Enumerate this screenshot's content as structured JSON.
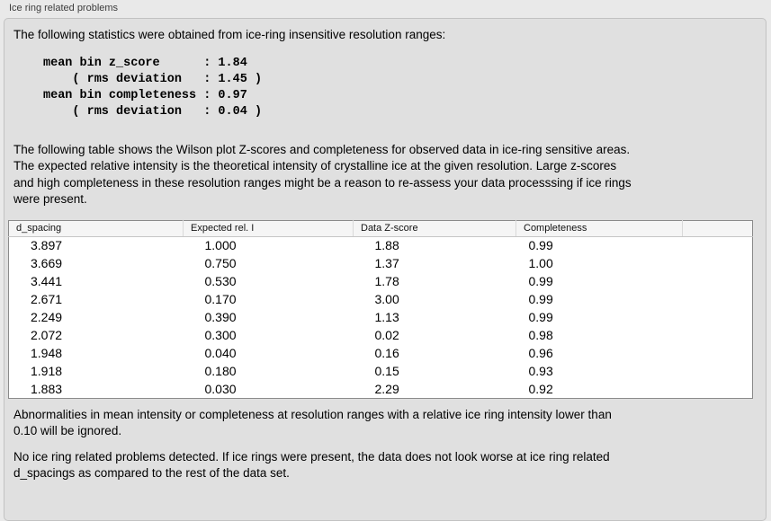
{
  "panel": {
    "title": "Ice ring related problems"
  },
  "intro": {
    "text": "The following statistics were obtained from ice-ring insensitive resolution ranges:"
  },
  "stats_block": {
    "lines": [
      "mean bin z_score      : 1.84",
      "    ( rms deviation   : 1.45 )",
      "mean bin completeness : 0.97",
      "    ( rms deviation   : 0.04 )"
    ]
  },
  "description": {
    "lines": [
      "The following table shows the Wilson plot Z-scores and completeness for observed data in ice-ring sensitive areas.",
      "The expected relative intensity is the theoretical intensity of crystalline ice at the given resolution. Large z-scores",
      "and high completeness in these resolution ranges might be a reason to re-assess your data processsing if ice rings",
      "were present."
    ]
  },
  "table": {
    "columns": [
      "d_spacing",
      "Expected rel. I",
      "Data Z-score",
      "Completeness",
      ""
    ],
    "rows": [
      [
        "3.897",
        "1.000",
        "1.88",
        "0.99"
      ],
      [
        "3.669",
        "0.750",
        "1.37",
        "1.00"
      ],
      [
        "3.441",
        "0.530",
        "1.78",
        "0.99"
      ],
      [
        "2.671",
        "0.170",
        "3.00",
        "0.99"
      ],
      [
        "2.249",
        "0.390",
        "1.13",
        "0.99"
      ],
      [
        "2.072",
        "0.300",
        "0.02",
        "0.98"
      ],
      [
        "1.948",
        "0.040",
        "0.16",
        "0.96"
      ],
      [
        "1.918",
        "0.180",
        "0.15",
        "0.93"
      ],
      [
        "1.883",
        "0.030",
        "2.29",
        "0.92"
      ]
    ]
  },
  "footnote": {
    "lines": [
      "Abnormalities in mean intensity or completeness at resolution ranges with a relative ice ring intensity lower than",
      "0.10 will be ignored."
    ]
  },
  "conclusion": {
    "lines": [
      "No ice ring related problems detected. If ice rings were present, the data does not look worse at ice ring related",
      "d_spacings as compared to the rest of the data set."
    ]
  },
  "colors": {
    "window_background": "#e9e9e9",
    "panel_background": "#e0e0e0",
    "table_background": "#ffffff",
    "table_header_background": "#f5f5f5",
    "table_border": "#8a8a8a"
  }
}
